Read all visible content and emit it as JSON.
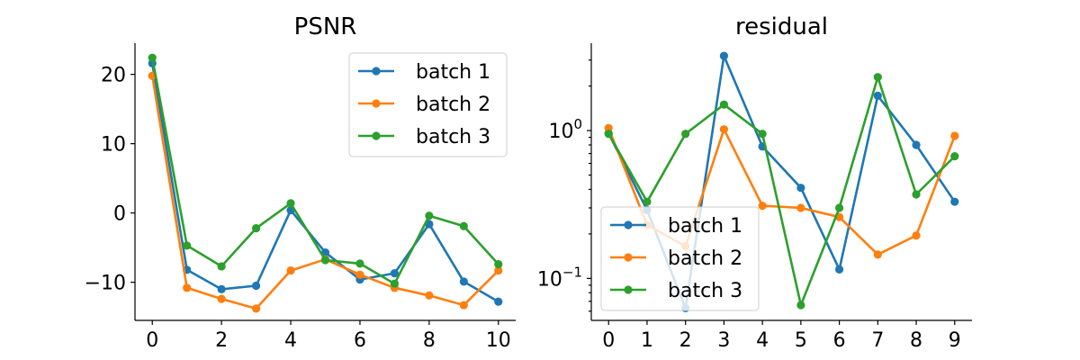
{
  "chart_data": [
    {
      "type": "line",
      "title": "PSNR",
      "xlabel": "",
      "ylabel": "",
      "xlim": [
        -0.5,
        10.5
      ],
      "ylim": [
        -15.5,
        24.5
      ],
      "xticks": [
        0,
        2,
        4,
        6,
        8,
        10
      ],
      "xtick_labels": [
        "0",
        "2",
        "4",
        "6",
        "8",
        "10"
      ],
      "yscale": "linear",
      "yticks": [
        20,
        10,
        0,
        -10
      ],
      "ytick_labels": [
        "20",
        "10",
        "0",
        "−10"
      ],
      "grid": false,
      "legend": "top-right",
      "series": [
        {
          "name": "batch 1",
          "color": "#1f77b4",
          "x": [
            0,
            1,
            2,
            3,
            4,
            5,
            6,
            7,
            8,
            9,
            10
          ],
          "y": [
            21.6,
            -8.2,
            -11.0,
            -10.5,
            0.4,
            -5.7,
            -9.6,
            -8.7,
            -1.6,
            -9.9,
            -12.8
          ]
        },
        {
          "name": "batch 2",
          "color": "#ff7f0e",
          "x": [
            0,
            1,
            2,
            3,
            4,
            5,
            6,
            7,
            8,
            9,
            10
          ],
          "y": [
            19.8,
            -10.8,
            -12.4,
            -13.8,
            -8.3,
            -6.7,
            -8.9,
            -10.8,
            -11.9,
            -13.3,
            -8.3
          ]
        },
        {
          "name": "batch 3",
          "color": "#2ca02c",
          "x": [
            0,
            1,
            2,
            3,
            4,
            5,
            6,
            7,
            8,
            9,
            10
          ],
          "y": [
            22.4,
            -4.7,
            -7.7,
            -2.2,
            1.4,
            -6.8,
            -7.3,
            -10.2,
            -0.4,
            -1.9,
            -7.4
          ]
        }
      ]
    },
    {
      "type": "line",
      "title": "residual",
      "xlabel": "",
      "ylabel": "",
      "xlim": [
        -0.45,
        9.45
      ],
      "ylim": [
        0.052,
        3.9
      ],
      "xticks": [
        0,
        1,
        2,
        3,
        4,
        5,
        6,
        7,
        8,
        9
      ],
      "xtick_labels": [
        "0",
        "1",
        "2",
        "3",
        "4",
        "5",
        "6",
        "7",
        "8",
        "9"
      ],
      "yscale": "log",
      "yticks": [
        1,
        0.1
      ],
      "ytick_labels": [
        {
          "base": "10",
          "exp": "0"
        },
        {
          "base": "10",
          "exp": "−1"
        }
      ],
      "grid": false,
      "legend": "bottom-left",
      "series": [
        {
          "name": "batch 1",
          "color": "#1f77b4",
          "x": [
            0,
            1,
            2,
            3,
            4,
            5,
            6,
            7,
            8,
            9
          ],
          "y": [
            0.96,
            0.29,
            0.063,
            3.2,
            0.78,
            0.41,
            0.115,
            1.72,
            0.8,
            0.33
          ]
        },
        {
          "name": "batch 2",
          "color": "#ff7f0e",
          "x": [
            0,
            1,
            2,
            3,
            4,
            5,
            6,
            7,
            8,
            9
          ],
          "y": [
            1.04,
            0.23,
            0.165,
            1.02,
            0.31,
            0.3,
            0.26,
            0.145,
            0.195,
            0.92
          ]
        },
        {
          "name": "batch 3",
          "color": "#2ca02c",
          "x": [
            0,
            1,
            2,
            3,
            4,
            5,
            6,
            7,
            8,
            9
          ],
          "y": [
            0.95,
            0.33,
            0.95,
            1.5,
            0.95,
            0.066,
            0.3,
            2.3,
            0.37,
            0.67
          ]
        }
      ]
    }
  ]
}
